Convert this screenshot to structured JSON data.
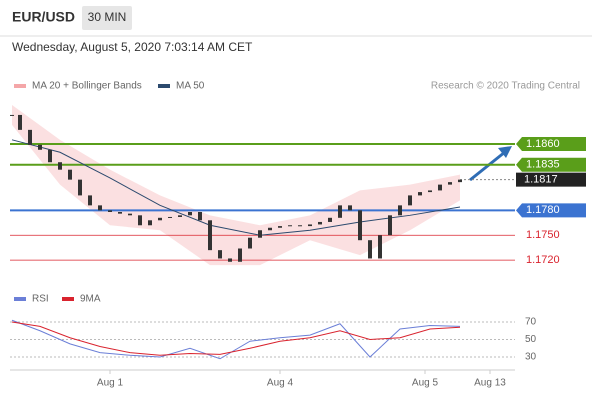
{
  "header": {
    "symbol": "EUR/USD",
    "timeframe": "30 MIN",
    "datetime": "Wednesday, August 5, 2020 7:03:14 AM CET"
  },
  "chart_data": [
    {
      "type": "candlestick",
      "watermark": "Research © 2020 Trading Central",
      "color": "#333333",
      "x": [
        0.4,
        2,
        4,
        6,
        8,
        10,
        12,
        14,
        16,
        18,
        20,
        22,
        24,
        26,
        28,
        30,
        32,
        34,
        36,
        38,
        40,
        42,
        44,
        46,
        48,
        50,
        52,
        54,
        56,
        58,
        60,
        62,
        64,
        66,
        68,
        70,
        72,
        74,
        76,
        78,
        80,
        82,
        84,
        86,
        88,
        90
      ],
      "close": [
        1.1895,
        1.1877,
        1.1859,
        1.1853,
        1.1838,
        1.1829,
        1.1817,
        1.1798,
        1.1786,
        1.178,
        1.1778,
        1.1776,
        1.1774,
        1.1762,
        1.1768,
        1.1771,
        1.1772,
        1.1774,
        1.1778,
        1.1768,
        1.1732,
        1.1722,
        1.1718,
        1.1734,
        1.1747,
        1.1756,
        1.1759,
        1.1761,
        1.1762,
        1.1761,
        1.1763,
        1.1766,
        1.1771,
        1.1786,
        1.178,
        1.1744,
        1.1722,
        1.175,
        1.1774,
        1.1786,
        1.1798,
        1.1802,
        1.1804,
        1.1811,
        1.1814,
        1.1817
      ],
      "series": [
        {
          "name": "MA 20 + Bollinger Bands",
          "color": "#f4a6a8",
          "x": [
            0.4,
            10,
            20,
            30,
            40,
            50,
            60,
            70,
            80,
            90
          ],
          "upper": [
            1.1907,
            1.1865,
            1.1829,
            1.1798,
            1.1774,
            1.1762,
            1.1774,
            1.1804,
            1.1811,
            1.1823
          ],
          "lower": [
            1.1883,
            1.1811,
            1.1762,
            1.1756,
            1.1714,
            1.1714,
            1.1744,
            1.1726,
            1.1756,
            1.1792
          ]
        },
        {
          "name": "MA 50",
          "color": "#2c4a6e",
          "x": [
            0.4,
            10,
            20,
            30,
            40,
            50,
            60,
            70,
            80,
            90
          ],
          "values": [
            1.1865,
            1.185,
            1.1819,
            1.1786,
            1.1762,
            1.175,
            1.1756,
            1.1766,
            1.1774,
            1.1784
          ]
        }
      ],
      "levels": [
        {
          "value": 1.186,
          "label": "1.1860",
          "color": "#5a9e1a",
          "style": "box"
        },
        {
          "value": 1.1835,
          "label": "1.1835",
          "color": "#5a9e1a",
          "style": "box"
        },
        {
          "value": 1.1817,
          "label": "1.1817",
          "color": "#222222",
          "style": "current"
        },
        {
          "value": 1.178,
          "label": "1.1780",
          "color": "#3b73d1",
          "style": "box"
        },
        {
          "value": 1.175,
          "label": "1.1750",
          "color": "#d9232e",
          "style": "text"
        },
        {
          "value": 1.172,
          "label": "1.1720",
          "color": "#d9232e",
          "style": "text"
        }
      ],
      "xlim": [
        0,
        100
      ],
      "ylim": [
        1.169,
        1.1913
      ],
      "xticks": [
        {
          "value": 20,
          "label": "Aug 1"
        },
        {
          "value": 54,
          "label": "Aug 4"
        },
        {
          "value": 83,
          "label": "Aug 5"
        },
        {
          "value": 96,
          "label": "Aug 13"
        }
      ]
    },
    {
      "type": "line",
      "x": [
        0.4,
        6,
        12,
        18,
        24,
        30,
        36,
        42,
        48,
        54,
        60,
        66,
        72,
        78,
        84,
        90
      ],
      "series": [
        {
          "name": "RSI",
          "color": "#6b7fd7",
          "values": [
            72,
            60,
            45,
            35,
            32,
            30,
            40,
            28,
            48,
            52,
            55,
            68,
            30,
            62,
            66,
            65
          ]
        },
        {
          "name": "9MA",
          "color": "#d9232e",
          "values": [
            70,
            65,
            52,
            42,
            35,
            32,
            34,
            33,
            40,
            48,
            52,
            60,
            50,
            52,
            62,
            64
          ]
        }
      ],
      "xlim": [
        0,
        100
      ],
      "ylim": [
        20,
        80
      ],
      "yticks": [
        30,
        50,
        70
      ]
    }
  ]
}
